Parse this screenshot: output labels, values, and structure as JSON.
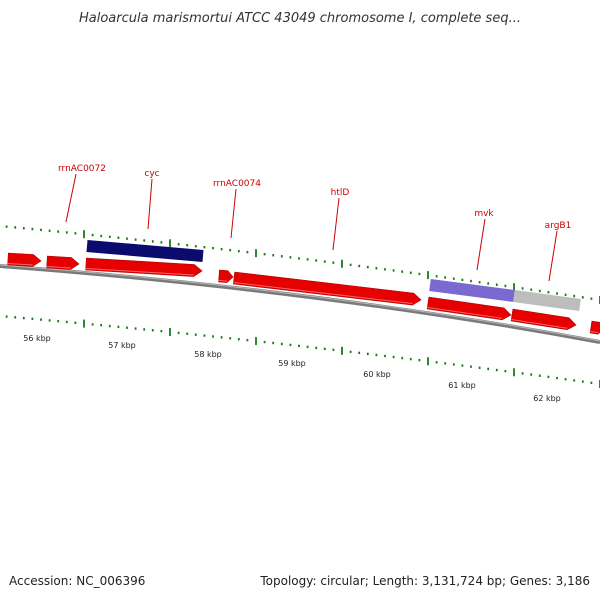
{
  "title": "Haloarcula marismortui ATCC 43049 chromosome I, complete seq...",
  "footer": {
    "accession": "Accession: NC_006396",
    "summary": "Topology: circular; Length: 3,131,724 bp; Genes: 3,186"
  },
  "colors": {
    "gene_forward": "#e60000",
    "gene_dark": "#0b0b6e",
    "gene_purple": "#7b68d0",
    "gene_grey": "#bdbdbd",
    "label": "#cc0000",
    "tick": "#1a7a1a",
    "backbone": "#7a7a7a"
  },
  "ruler": {
    "ticks": [
      "56 kbp",
      "57 kbp",
      "58 kbp",
      "59 kbp",
      "60 kbp",
      "61 kbp",
      "62 kbp"
    ]
  },
  "genes": [
    {
      "name": "rrnAC0072"
    },
    {
      "name": "cyc"
    },
    {
      "name": "rrnAC0074"
    },
    {
      "name": "htlD"
    },
    {
      "name": "mvk"
    },
    {
      "name": "argB1"
    }
  ]
}
